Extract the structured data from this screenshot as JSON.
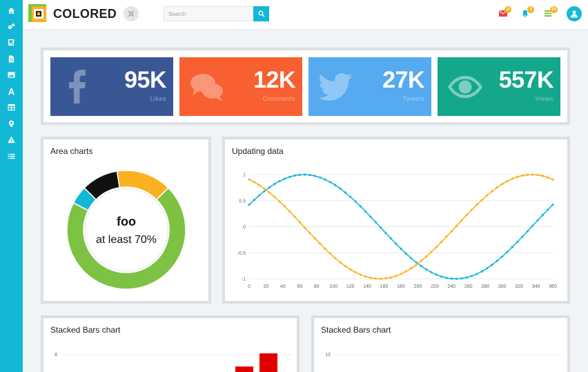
{
  "brand": {
    "name": "COLORED"
  },
  "search": {
    "placeholder": "Search"
  },
  "notifications": {
    "mail_count": "3",
    "bell_count": "3",
    "list_count": "15"
  },
  "stats": [
    {
      "value": "95K",
      "label": "Likes",
      "icon": "facebook-icon",
      "color": "#3a5795"
    },
    {
      "value": "12K",
      "label": "Comments",
      "icon": "chat-bubbles-icon",
      "color": "#f86031"
    },
    {
      "value": "27K",
      "label": "Tweets",
      "icon": "twitter-icon",
      "color": "#55aaf0"
    },
    {
      "value": "557K",
      "label": "Views",
      "icon": "eye-icon",
      "color": "#14a78c"
    }
  ],
  "area_panel": {
    "title": "Area charts",
    "center_title": "foo",
    "center_text": "at least 70%"
  },
  "updating_panel": {
    "title": "Updating data"
  },
  "stacked_left": {
    "title": "Stacked Bars chart",
    "ytick_top": "8"
  },
  "stacked_right": {
    "title": "Stacked Bars chart",
    "ytick_top": "12"
  },
  "chart_data": [
    {
      "type": "pie",
      "labels": [
        "",
        "",
        "",
        ""
      ],
      "values": [
        70,
        5,
        10,
        15
      ],
      "colors": [
        "#7dc242",
        "#12b8d5",
        "#111111",
        "#f9b122"
      ]
    },
    {
      "type": "line",
      "x": [
        0,
        20,
        40,
        60,
        80,
        100,
        120,
        140,
        160,
        180,
        200,
        220,
        240,
        260,
        280,
        300,
        320,
        340,
        360
      ],
      "xticks": [
        "0",
        "20",
        "40",
        "60",
        "80",
        "100",
        "120",
        "140",
        "160",
        "180",
        "200",
        "220",
        "240",
        "260",
        "280",
        "300",
        "320",
        "340",
        "360"
      ],
      "yticks": [
        "1",
        "0.5",
        "0",
        "-0.5",
        "-1"
      ],
      "ylim": [
        -1,
        1
      ],
      "xlim": [
        0,
        360
      ],
      "series": [
        {
          "color": "#12b8d5",
          "phase_deg": 25,
          "func": "sin"
        },
        {
          "color": "#f9b122",
          "phase_deg": 25,
          "func": "cos"
        }
      ]
    }
  ]
}
